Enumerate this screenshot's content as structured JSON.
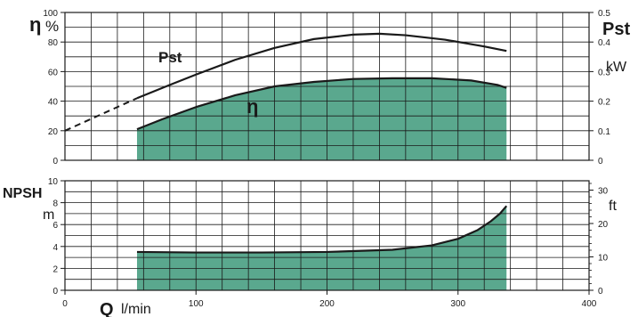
{
  "labels": {
    "eta_symbol": "η",
    "eta_unit": "%",
    "pst_right": "Pst",
    "kw_unit": "kW",
    "pst_curve": "Pst",
    "eta_curve": "η",
    "npsh": "NPSH",
    "m_unit": "m",
    "ft_unit": "ft",
    "q_symbol": "Q",
    "q_unit": "l/min"
  },
  "colors": {
    "fill": "#5aa88e",
    "line": "#1a1a1a",
    "grid": "#1a1a1a"
  },
  "chart_data": [
    {
      "type": "line",
      "title": "",
      "xlabel": "Q l/min",
      "xlim": [
        0,
        400
      ],
      "x_ticks": [
        0,
        100,
        200,
        300,
        400
      ],
      "ylabel": "η %",
      "ylim": [
        0,
        100
      ],
      "y_ticks": [
        0,
        20,
        40,
        60,
        80,
        100
      ],
      "y2label": "Pst kW",
      "y2lim": [
        0,
        0.5
      ],
      "y2_ticks": [
        0,
        0.1,
        0.2,
        0.3,
        0.4,
        0.5
      ],
      "grid": true,
      "series": [
        {
          "name": "Pst",
          "axis": "right",
          "x": [
            55,
            80,
            100,
            130,
            160,
            190,
            220,
            240,
            260,
            290,
            320,
            337
          ],
          "values": [
            0.21,
            0.255,
            0.29,
            0.34,
            0.38,
            0.41,
            0.425,
            0.428,
            0.423,
            0.408,
            0.385,
            0.37
          ],
          "extrapolated": {
            "x": [
              0,
              55
            ],
            "values": [
              0.1,
              0.21
            ]
          }
        },
        {
          "name": "η",
          "axis": "left",
          "filled": true,
          "x": [
            55,
            75,
            100,
            130,
            160,
            190,
            220,
            250,
            280,
            310,
            330,
            337
          ],
          "values": [
            21,
            28,
            36,
            44,
            50,
            53,
            55,
            55.5,
            55.5,
            54,
            51,
            49
          ]
        }
      ]
    },
    {
      "type": "area",
      "title": "",
      "xlabel": "Q l/min",
      "xlim": [
        0,
        400
      ],
      "x_ticks": [
        0,
        100,
        200,
        300,
        400
      ],
      "ylabel": "NPSH m",
      "ylim": [
        0,
        10
      ],
      "y_ticks": [
        0,
        2,
        4,
        6,
        8,
        10
      ],
      "y2label": "ft",
      "y2lim": [
        0,
        32.8
      ],
      "y2_ticks": [
        0,
        10,
        20,
        30
      ],
      "grid": true,
      "series": [
        {
          "name": "NPSH",
          "x": [
            55,
            100,
            150,
            200,
            250,
            280,
            300,
            315,
            325,
            332,
            337
          ],
          "values": [
            3.5,
            3.45,
            3.45,
            3.5,
            3.7,
            4.1,
            4.7,
            5.5,
            6.3,
            7.0,
            7.7
          ]
        }
      ]
    }
  ]
}
